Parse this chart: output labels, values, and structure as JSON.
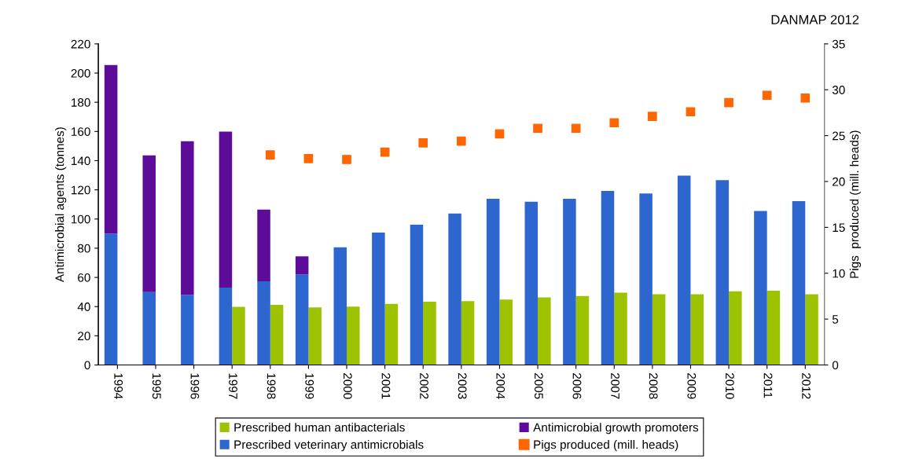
{
  "chart_data": {
    "type": "bar",
    "categories": [
      "1994",
      "1995",
      "1996",
      "1997",
      "1998",
      "1999",
      "2000",
      "2001",
      "2002",
      "2003",
      "2004",
      "2005",
      "2006",
      "2007",
      "2008",
      "2009",
      "2010",
      "2011",
      "2012"
    ],
    "ylabel": "Antimicrobial agents (tonnes)",
    "y2label": "Pigs  produced (mill. heads)",
    "ylim": [
      0,
      220
    ],
    "yticks": [
      0,
      20,
      40,
      60,
      80,
      100,
      120,
      140,
      160,
      180,
      200,
      220
    ],
    "y2lim": [
      0,
      35
    ],
    "y2ticks": [
      0,
      5,
      10,
      15,
      20,
      25,
      30,
      35
    ],
    "annotations": [
      "DANMAP 2012"
    ],
    "grid": false,
    "legend": "bottom",
    "series": [
      {
        "name": "Prescribed human antibacterials",
        "color": "#9dc300",
        "values": [
          null,
          null,
          null,
          39.8,
          41.2,
          39.4,
          40,
          41.8,
          43.3,
          43.8,
          44.8,
          46.3,
          47.2,
          49.5,
          48.4,
          48.4,
          50.5,
          50.9,
          48.4
        ]
      },
      {
        "name": "Prescribed veterinary antimicrobials",
        "color": "#2e66d0",
        "values": [
          90,
          50,
          48,
          53,
          57.4,
          62,
          80.6,
          90.7,
          96.1,
          103.8,
          113.9,
          111.8,
          113.9,
          119.2,
          117.5,
          129.7,
          126.7,
          105.5,
          112.2
        ]
      },
      {
        "name": "Antimicrobial growth promoters",
        "color": "#5c0c99",
        "base": [
          90,
          50,
          48,
          53,
          57.4,
          62,
          null,
          null,
          null,
          null,
          null,
          null,
          null,
          null,
          null,
          null,
          null,
          null,
          null
        ],
        "values": [
          115.5,
          93.6,
          105.3,
          106.9,
          49.1,
          12.4,
          null,
          null,
          null,
          null,
          null,
          null,
          null,
          null,
          null,
          null,
          null,
          null,
          null
        ]
      },
      {
        "name": "Pigs produced (mill. heads)",
        "type": "scatter",
        "axis": "y2",
        "marker": "square",
        "color": "#ff6600",
        "values": [
          null,
          null,
          null,
          null,
          22.9,
          22.5,
          22.4,
          23.2,
          24.2,
          24.4,
          25.2,
          25.8,
          25.8,
          26.4,
          27.1,
          27.6,
          28.6,
          29.4,
          29.1
        ]
      }
    ]
  }
}
